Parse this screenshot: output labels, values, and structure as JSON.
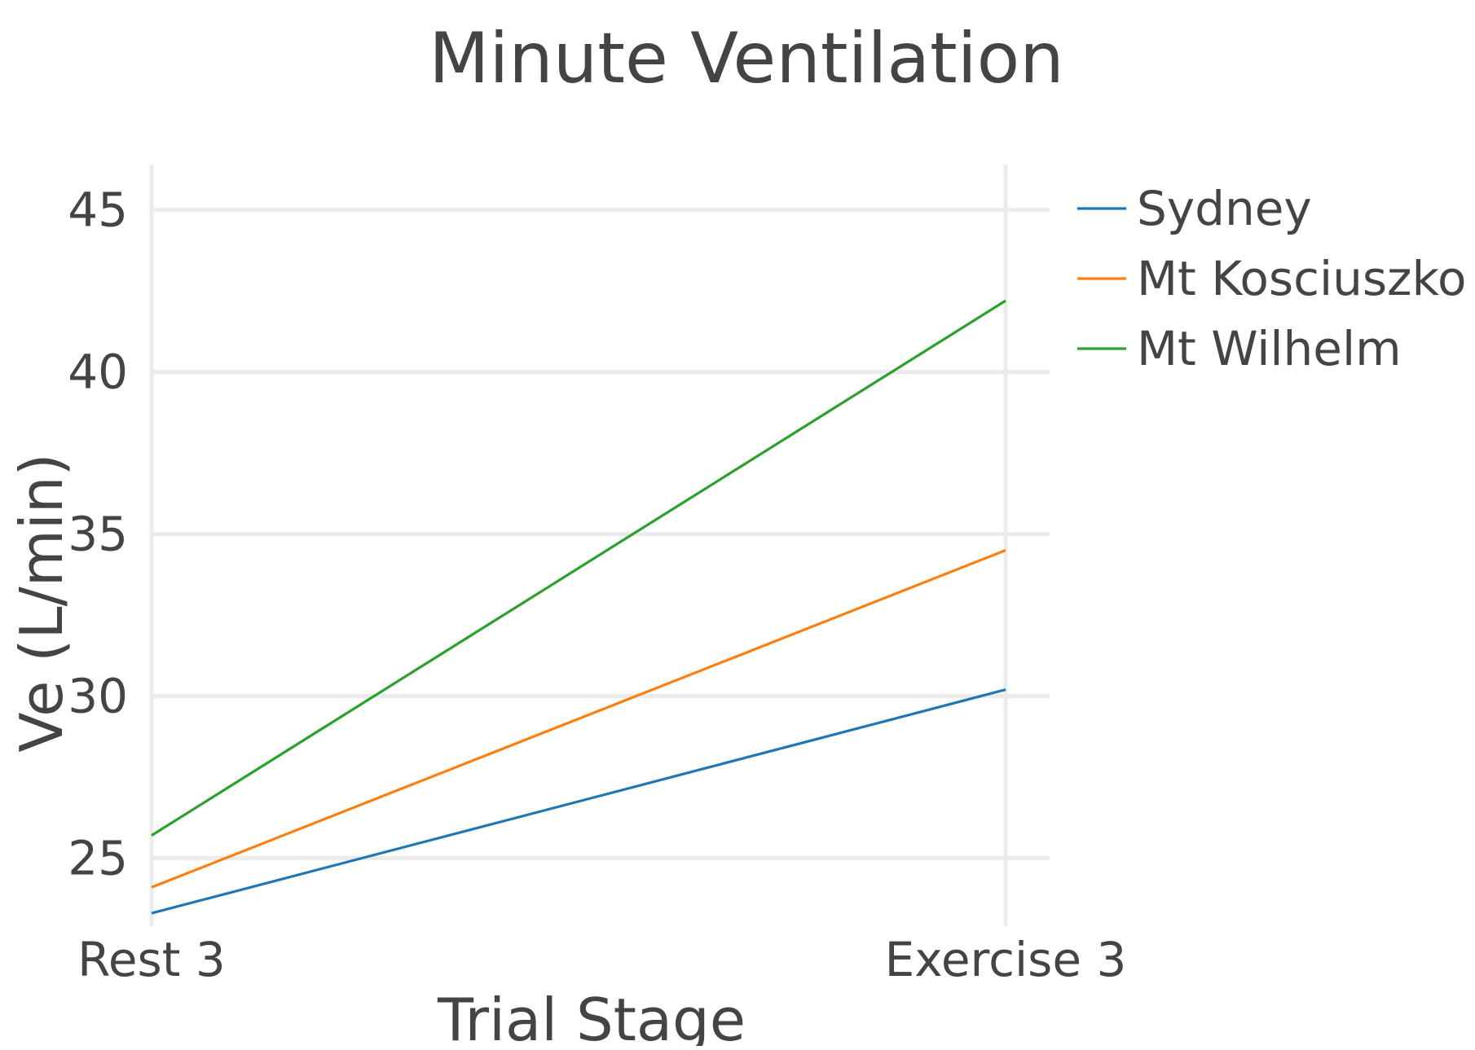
{
  "chart_data": {
    "type": "line",
    "title": "Minute Ventilation",
    "xlabel": "Trial Stage",
    "ylabel": "Ve (L/min)",
    "categories": [
      "Rest 3",
      "Exercise 3"
    ],
    "ylim": [
      22.9,
      46.4
    ],
    "yticks": [
      25,
      30,
      35,
      40,
      45
    ],
    "grid": true,
    "legend_position": "top-right",
    "series": [
      {
        "name": "Sydney",
        "color": "#1f77b4",
        "values": [
          23.3,
          30.2
        ]
      },
      {
        "name": "Mt Kosciuszko",
        "color": "#ff7f0e",
        "values": [
          24.1,
          34.5
        ]
      },
      {
        "name": "Mt Wilhelm",
        "color": "#2ca02c",
        "values": [
          25.7,
          42.2
        ]
      }
    ]
  }
}
